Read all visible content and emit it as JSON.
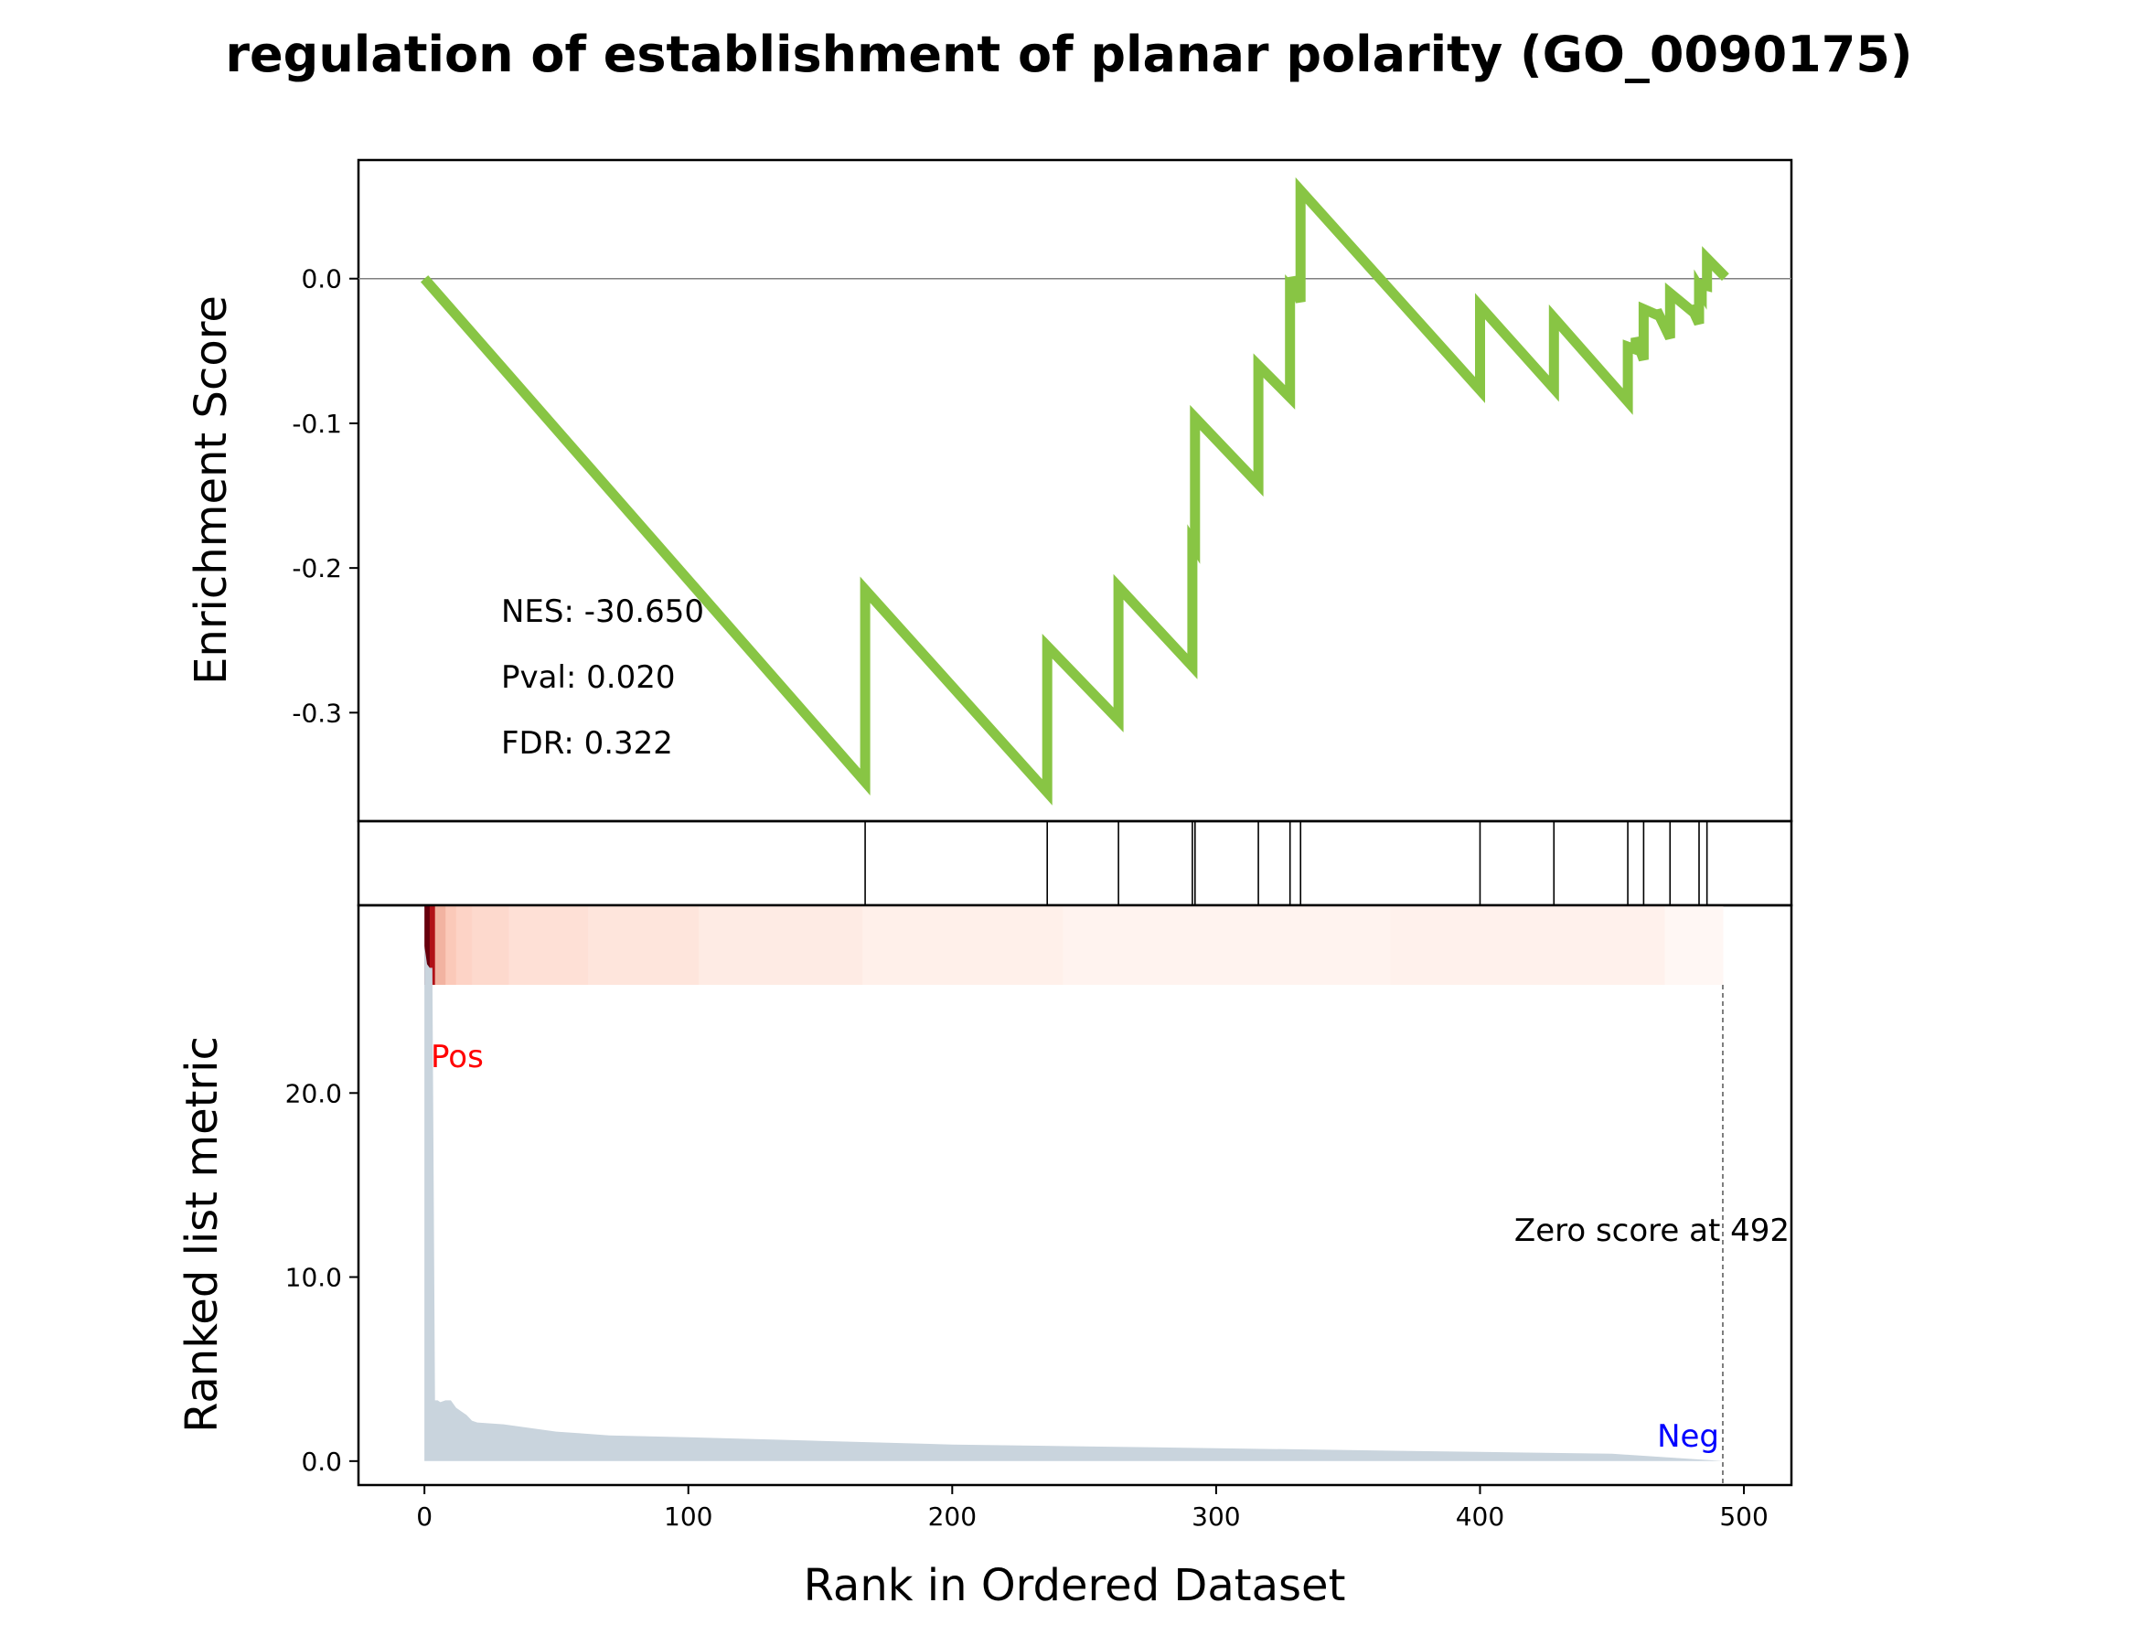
{
  "chart_data": {
    "type": "line",
    "title": "regulation of establishment of planar polarity (GO_0090175)",
    "xlabel": "Rank in Ordered Dataset",
    "xlim": [
      -25,
      518
    ],
    "xticks": [
      0,
      100,
      200,
      300,
      400,
      500
    ],
    "xtick_labels": [
      "0",
      "100",
      "200",
      "300",
      "400",
      "500"
    ],
    "es_panel": {
      "ylabel": "Enrichment Score",
      "ylim": [
        -0.375,
        0.082
      ],
      "yticks": [
        0.0,
        -0.1,
        -0.2,
        -0.3
      ],
      "ytick_labels": [
        "0.0",
        "-0.1",
        "-0.2",
        "-0.3"
      ],
      "zero_line": true,
      "line_color": "#88c544",
      "series": {
        "name": "Enrichment Score",
        "x": [
          0,
          167,
          167,
          236,
          236,
          263,
          263,
          291,
          291,
          292,
          292,
          316,
          316,
          328,
          328,
          329,
          329,
          332,
          332,
          400,
          400,
          428,
          428,
          456,
          456,
          459,
          459,
          462,
          462,
          467,
          467,
          472,
          472,
          480,
          480,
          483,
          483,
          484,
          484,
          486,
          486,
          493
        ],
        "y": [
          0.0,
          -0.348,
          -0.215,
          -0.355,
          -0.254,
          -0.305,
          -0.213,
          -0.268,
          -0.182,
          -0.185,
          -0.096,
          -0.142,
          -0.06,
          -0.082,
          -0.006,
          -0.008,
          0.001,
          -0.016,
          0.061,
          -0.077,
          -0.019,
          -0.076,
          -0.027,
          -0.085,
          -0.047,
          -0.049,
          -0.041,
          -0.056,
          -0.021,
          -0.025,
          -0.022,
          -0.041,
          -0.01,
          -0.022,
          -0.019,
          -0.031,
          -0.006,
          -0.009,
          -0.004,
          -0.005,
          0.014,
          0.001
        ]
      },
      "stats": {
        "nes": "NES: -30.650",
        "pval": "Pval: 0.020",
        "fdr": "FDR: 0.322"
      }
    },
    "hits_panel": {
      "positions": [
        167,
        236,
        263,
        291,
        292,
        316,
        328,
        332,
        400,
        428,
        456,
        462,
        472,
        483,
        486
      ]
    },
    "heatmap_panel": {
      "colormap": "Reds",
      "x_range": [
        0,
        492
      ],
      "segments": [
        {
          "x0": 0,
          "x1": 2,
          "color": "#67000d"
        },
        {
          "x0": 2,
          "x1": 4,
          "color": "#b11218"
        },
        {
          "x0": 4,
          "x1": 8,
          "color": "#f2b3a1"
        },
        {
          "x0": 8,
          "x1": 12,
          "color": "#fbc9b9"
        },
        {
          "x0": 12,
          "x1": 18,
          "color": "#fdd3c6"
        },
        {
          "x0": 18,
          "x1": 32,
          "color": "#fdd9cd"
        },
        {
          "x0": 32,
          "x1": 62,
          "color": "#fee0d6"
        },
        {
          "x0": 62,
          "x1": 104,
          "color": "#fee5dc"
        },
        {
          "x0": 104,
          "x1": 166,
          "color": "#feebe4"
        },
        {
          "x0": 166,
          "x1": 242,
          "color": "#fff0ea"
        },
        {
          "x0": 242,
          "x1": 366,
          "color": "#fff3ef"
        },
        {
          "x0": 366,
          "x1": 470,
          "color": "#fff1ec"
        },
        {
          "x0": 470,
          "x1": 492,
          "color": "#fff7f4"
        }
      ]
    },
    "metric_panel": {
      "ylabel": "Ranked list metric",
      "ylim": [
        -1.3,
        30.2
      ],
      "yticks": [
        0.0,
        10.0,
        20.0
      ],
      "ytick_labels": [
        "0.0",
        "10.0",
        "20.0"
      ],
      "fill_color": "#c9d4dd",
      "series": {
        "name": "Ranked list metric",
        "x": [
          0,
          1,
          2,
          3,
          4,
          5,
          6,
          8,
          10,
          12,
          14,
          16,
          18,
          20,
          30,
          40,
          50,
          60,
          70,
          100,
          150,
          200,
          250,
          300,
          350,
          400,
          450,
          492
        ],
        "y": [
          28.0,
          27.0,
          26.8,
          26.8,
          3.3,
          3.3,
          3.2,
          3.3,
          3.3,
          2.9,
          2.7,
          2.5,
          2.2,
          2.1,
          2.0,
          1.8,
          1.6,
          1.5,
          1.4,
          1.3,
          1.1,
          0.9,
          0.8,
          0.7,
          0.6,
          0.5,
          0.4,
          0.0
        ]
      },
      "zero_score_line_x": 492,
      "annotations": {
        "zero_score": "Zero score at 492",
        "pos": "Pos",
        "neg": "Neg"
      },
      "pos_color": "#ff0000",
      "neg_color": "#0000ff"
    }
  }
}
